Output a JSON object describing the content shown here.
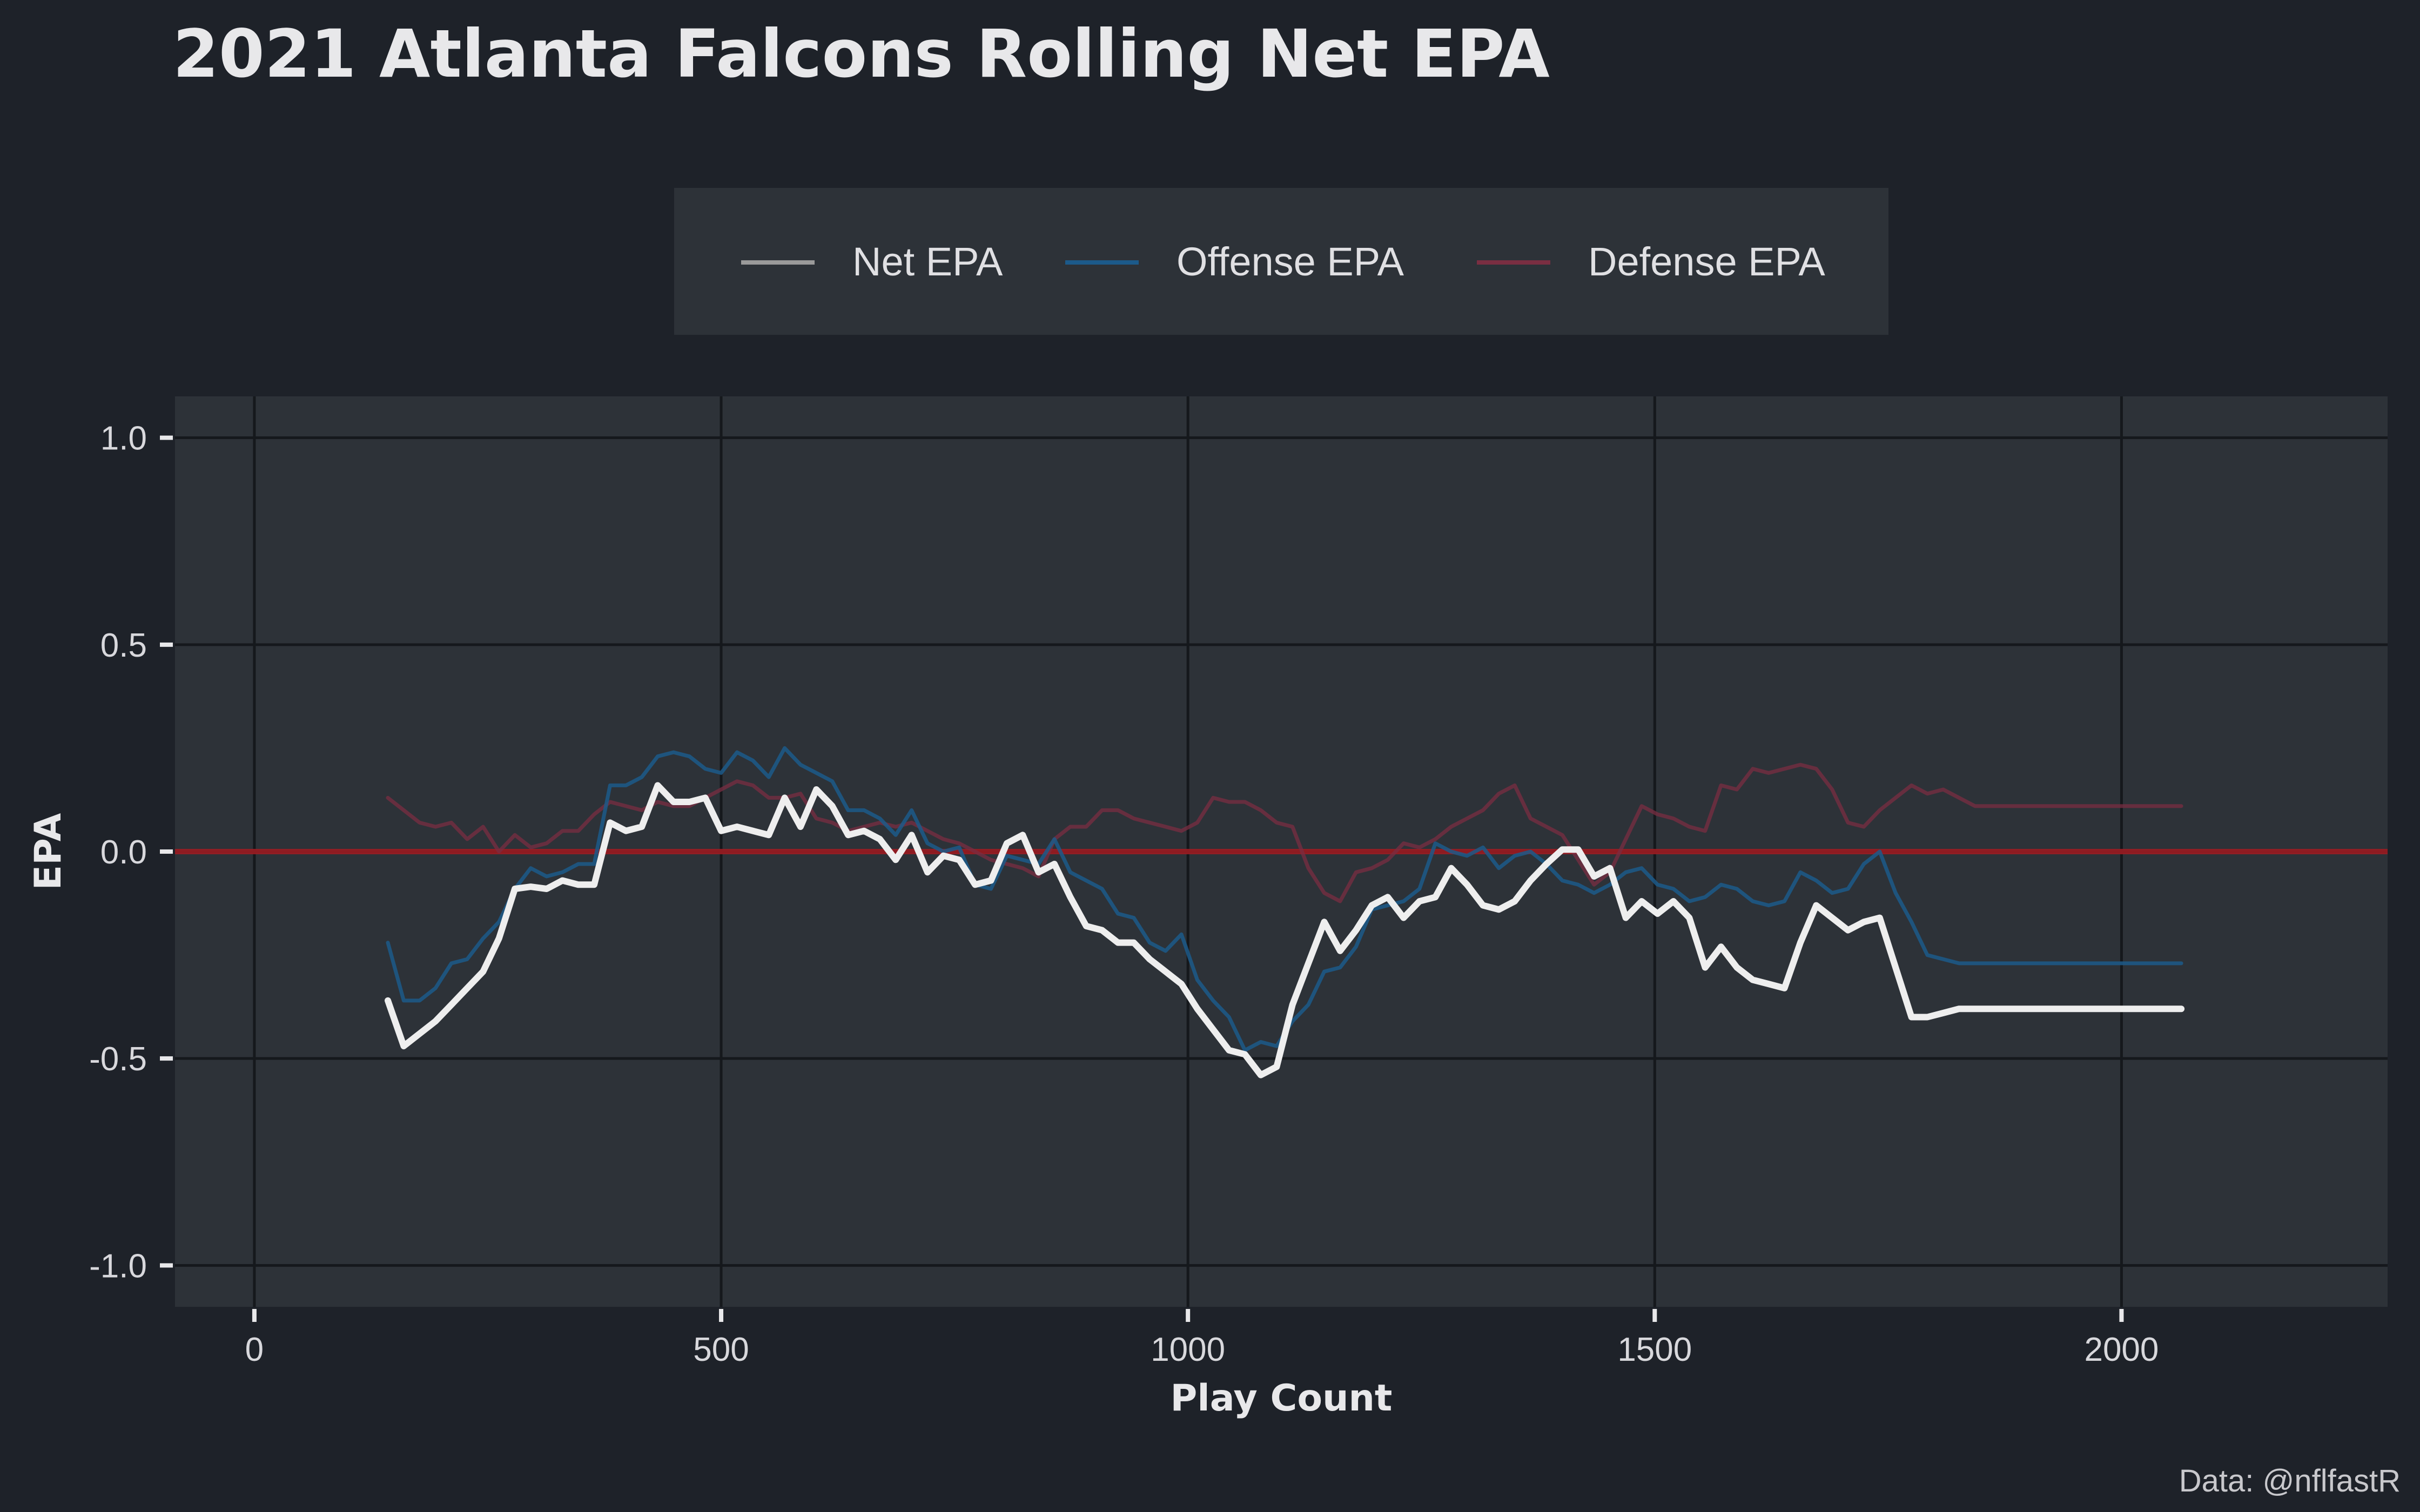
{
  "chart_data": {
    "type": "line",
    "title": "2021 Atlanta Falcons Rolling Net EPA",
    "xlabel": "Play Count",
    "ylabel": "EPA",
    "caption": "Data: @nflfastR",
    "xlim": [
      -85,
      2285
    ],
    "ylim": [
      -1.1,
      1.1
    ],
    "x_ticks": [
      0,
      500,
      1000,
      1500,
      2000
    ],
    "x_tick_labels": [
      "0",
      "500",
      "1000",
      "1500",
      "2000"
    ],
    "y_ticks": [
      1.0,
      0.5,
      0.0,
      -0.5,
      -1.0
    ],
    "y_tick_labels": [
      "1.0",
      "0.5",
      "0.0",
      "-0.5",
      "-1.0"
    ],
    "grid": true,
    "legend_position": "top",
    "zero_line": {
      "y": 0,
      "color": "#9b1c22"
    },
    "colors": {
      "background": "#1e2229",
      "panel": "#2d3238",
      "grid": "#15181c",
      "legend_bg": "#2d3238"
    },
    "x": [
      143,
      160,
      177,
      194,
      211,
      228,
      245,
      262,
      279,
      296,
      313,
      330,
      347,
      364,
      381,
      398,
      415,
      432,
      449,
      466,
      483,
      500,
      517,
      534,
      551,
      568,
      585,
      602,
      619,
      636,
      653,
      670,
      687,
      704,
      721,
      738,
      755,
      772,
      789,
      806,
      823,
      840,
      857,
      874,
      891,
      908,
      925,
      942,
      959,
      976,
      993,
      1010,
      1027,
      1044,
      1061,
      1078,
      1095,
      1112,
      1129,
      1146,
      1163,
      1180,
      1197,
      1214,
      1231,
      1248,
      1265,
      1282,
      1299,
      1316,
      1333,
      1350,
      1367,
      1384,
      1401,
      1418,
      1435,
      1452,
      1469,
      1486,
      1503,
      1520,
      1537,
      1554,
      1571,
      1588,
      1605,
      1622,
      1639,
      1656,
      1673,
      1690,
      1707,
      1724,
      1741,
      1758,
      1775,
      1792,
      1809,
      1826,
      1843,
      1860,
      1877,
      1894,
      1911,
      1928,
      1945,
      1962,
      1979,
      1996,
      2013,
      2030,
      2047,
      2064
    ],
    "series": [
      {
        "name": "Net EPA",
        "color": "#eeeeee",
        "values": [
          -0.36,
          -0.47,
          -0.44,
          -0.41,
          -0.37,
          -0.33,
          -0.29,
          -0.21,
          -0.09,
          -0.085,
          -0.09,
          -0.07,
          -0.08,
          -0.08,
          0.07,
          0.05,
          0.06,
          0.16,
          0.12,
          0.12,
          0.13,
          0.05,
          0.06,
          0.05,
          0.04,
          0.13,
          0.06,
          0.15,
          0.11,
          0.04,
          0.05,
          0.03,
          -0.02,
          0.04,
          -0.05,
          -0.01,
          -0.02,
          -0.08,
          -0.07,
          0.02,
          0.04,
          -0.05,
          -0.03,
          -0.11,
          -0.18,
          -0.19,
          -0.22,
          -0.22,
          -0.26,
          -0.29,
          -0.32,
          -0.38,
          -0.43,
          -0.48,
          -0.49,
          -0.54,
          -0.52,
          -0.37,
          -0.27,
          -0.17,
          -0.24,
          -0.19,
          -0.13,
          -0.11,
          -0.16,
          -0.12,
          -0.11,
          -0.04,
          -0.08,
          -0.13,
          -0.14,
          -0.12,
          -0.07,
          -0.03,
          0.005,
          0.005,
          -0.06,
          -0.04,
          -0.16,
          -0.12,
          -0.15,
          -0.12,
          -0.16,
          -0.28,
          -0.23,
          -0.28,
          -0.31,
          -0.32,
          -0.33,
          -0.22,
          -0.13,
          -0.16,
          -0.19,
          -0.17,
          -0.16,
          -0.28,
          -0.4,
          -0.4,
          -0.39,
          -0.38,
          -0.38,
          -0.38,
          -0.38,
          -0.38,
          -0.38,
          -0.38,
          -0.38,
          -0.38,
          -0.38,
          -0.38,
          -0.38,
          -0.38,
          -0.38,
          -0.38
        ]
      },
      {
        "name": "Offense EPA",
        "color": "#1c5a8a",
        "values": [
          -0.22,
          -0.36,
          -0.36,
          -0.33,
          -0.27,
          -0.26,
          -0.21,
          -0.17,
          -0.09,
          -0.04,
          -0.06,
          -0.05,
          -0.03,
          -0.03,
          0.16,
          0.16,
          0.18,
          0.23,
          0.24,
          0.23,
          0.2,
          0.19,
          0.24,
          0.22,
          0.18,
          0.25,
          0.21,
          0.19,
          0.17,
          0.1,
          0.1,
          0.08,
          0.04,
          0.1,
          0.02,
          0.0,
          0.01,
          -0.08,
          -0.09,
          -0.01,
          -0.02,
          -0.03,
          0.03,
          -0.05,
          -0.07,
          -0.09,
          -0.15,
          -0.16,
          -0.22,
          -0.24,
          -0.2,
          -0.31,
          -0.36,
          -0.4,
          -0.48,
          -0.46,
          -0.47,
          -0.41,
          -0.37,
          -0.29,
          -0.28,
          -0.23,
          -0.14,
          -0.13,
          -0.12,
          -0.09,
          0.02,
          0.0,
          -0.01,
          0.01,
          -0.04,
          -0.01,
          0.0,
          -0.03,
          -0.07,
          -0.08,
          -0.1,
          -0.08,
          -0.05,
          -0.04,
          -0.08,
          -0.09,
          -0.12,
          -0.11,
          -0.08,
          -0.09,
          -0.12,
          -0.13,
          -0.12,
          -0.05,
          -0.07,
          -0.1,
          -0.09,
          -0.03,
          0.0,
          -0.1,
          -0.17,
          -0.25,
          -0.26,
          -0.27,
          -0.27,
          -0.27,
          -0.27,
          -0.27,
          -0.27,
          -0.27,
          -0.27,
          -0.27,
          -0.27,
          -0.27,
          -0.27,
          -0.27,
          -0.27,
          -0.27
        ]
      },
      {
        "name": "Defense EPA",
        "color": "#7a2e42",
        "values": [
          0.13,
          0.1,
          0.07,
          0.06,
          0.07,
          0.03,
          0.06,
          0.0,
          0.04,
          0.01,
          0.02,
          0.05,
          0.05,
          0.09,
          0.12,
          0.11,
          0.1,
          0.12,
          0.11,
          0.11,
          0.13,
          0.15,
          0.17,
          0.16,
          0.13,
          0.13,
          0.14,
          0.08,
          0.07,
          0.05,
          0.06,
          0.07,
          0.06,
          0.07,
          0.05,
          0.03,
          0.02,
          0.0,
          -0.02,
          -0.03,
          -0.04,
          -0.06,
          0.03,
          0.06,
          0.06,
          0.1,
          0.1,
          0.08,
          0.07,
          0.06,
          0.05,
          0.07,
          0.13,
          0.12,
          0.12,
          0.1,
          0.07,
          0.06,
          -0.04,
          -0.1,
          -0.12,
          -0.05,
          -0.04,
          -0.02,
          0.02,
          0.01,
          0.03,
          0.06,
          0.08,
          0.1,
          0.14,
          0.16,
          0.08,
          0.06,
          0.04,
          -0.02,
          -0.08,
          -0.05,
          0.03,
          0.11,
          0.09,
          0.08,
          0.06,
          0.05,
          0.16,
          0.15,
          0.2,
          0.19,
          0.2,
          0.21,
          0.2,
          0.15,
          0.07,
          0.06,
          0.1,
          0.13,
          0.16,
          0.14,
          0.15,
          0.13,
          0.11,
          0.11,
          0.11,
          0.11,
          0.11,
          0.11,
          0.11,
          0.11,
          0.11,
          0.11,
          0.11,
          0.11,
          0.11,
          0.11
        ]
      }
    ]
  }
}
